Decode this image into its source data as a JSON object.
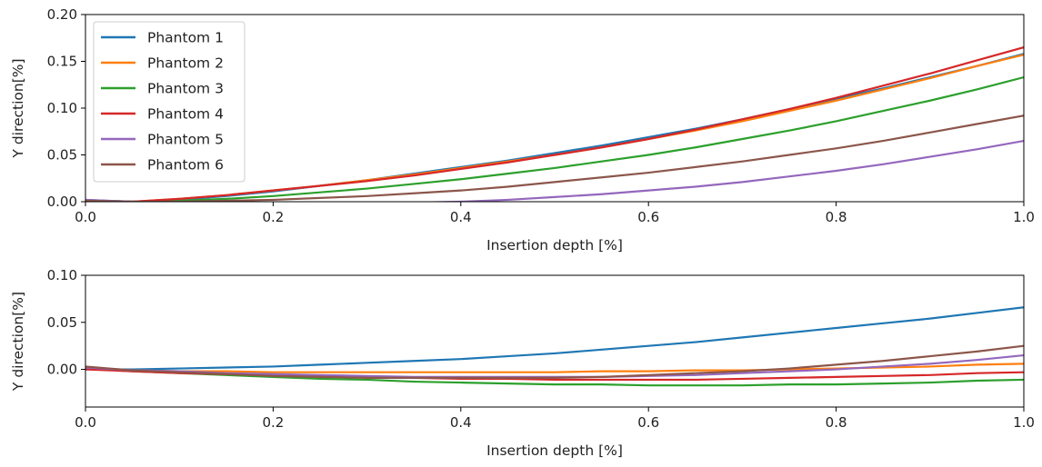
{
  "chart_data": [
    {
      "type": "line",
      "title": "",
      "xlabel": "Insertion depth [%]",
      "ylabel": "Y direction[%]",
      "xlim": [
        0,
        1
      ],
      "ylim": [
        0,
        0.2
      ],
      "xticks": [
        0.0,
        0.2,
        0.4,
        0.6,
        0.8,
        1.0
      ],
      "xtick_labels": [
        "0.0",
        "0.2",
        "0.4",
        "0.6",
        "0.8",
        "1.0"
      ],
      "yticks": [
        0.0,
        0.05,
        0.1,
        0.15,
        0.2
      ],
      "ytick_labels": [
        "0.00",
        "0.05",
        "0.10",
        "0.15",
        "0.20"
      ],
      "grid": false,
      "legend": "top-left",
      "x": [
        0.0,
        0.05,
        0.1,
        0.15,
        0.2,
        0.25,
        0.3,
        0.35,
        0.4,
        0.45,
        0.5,
        0.55,
        0.6,
        0.65,
        0.7,
        0.75,
        0.8,
        0.85,
        0.9,
        0.95,
        1.0
      ],
      "series": [
        {
          "name": "Phantom 1",
          "color": "#1f77b4",
          "values": [
            0.002,
            0.0,
            0.002,
            0.006,
            0.011,
            0.017,
            0.023,
            0.03,
            0.037,
            0.044,
            0.052,
            0.06,
            0.069,
            0.078,
            0.088,
            0.099,
            0.11,
            0.121,
            0.133,
            0.145,
            0.158
          ]
        },
        {
          "name": "Phantom 2",
          "color": "#ff7f0e",
          "values": [
            0.001,
            0.0,
            0.003,
            0.007,
            0.012,
            0.017,
            0.023,
            0.029,
            0.036,
            0.043,
            0.05,
            0.058,
            0.067,
            0.076,
            0.086,
            0.097,
            0.108,
            0.12,
            0.132,
            0.145,
            0.157
          ]
        },
        {
          "name": "Phantom 3",
          "color": "#2ca02c",
          "values": [
            0.001,
            0.0,
            0.001,
            0.003,
            0.006,
            0.01,
            0.014,
            0.019,
            0.024,
            0.03,
            0.036,
            0.043,
            0.05,
            0.058,
            0.067,
            0.076,
            0.086,
            0.097,
            0.108,
            0.12,
            0.133
          ]
        },
        {
          "name": "Phantom 4",
          "color": "#d62728",
          "values": [
            0.0,
            0.0,
            0.003,
            0.007,
            0.012,
            0.017,
            0.022,
            0.028,
            0.035,
            0.042,
            0.05,
            0.058,
            0.067,
            0.077,
            0.088,
            0.099,
            0.111,
            0.124,
            0.137,
            0.151,
            0.165
          ]
        },
        {
          "name": "Phantom 5",
          "color": "#9467bd",
          "values": [
            0.002,
            0.0,
            -0.001,
            -0.002,
            -0.003,
            -0.003,
            -0.002,
            -0.001,
            0.0,
            0.002,
            0.005,
            0.008,
            0.012,
            0.016,
            0.021,
            0.027,
            0.033,
            0.04,
            0.048,
            0.056,
            0.065
          ]
        },
        {
          "name": "Phantom 6",
          "color": "#8c564b",
          "values": [
            0.001,
            0.0,
            0.0,
            0.001,
            0.002,
            0.004,
            0.006,
            0.009,
            0.012,
            0.016,
            0.021,
            0.026,
            0.031,
            0.037,
            0.043,
            0.05,
            0.057,
            0.065,
            0.074,
            0.083,
            0.092
          ]
        }
      ]
    },
    {
      "type": "line",
      "title": "",
      "xlabel": "Insertion depth [%]",
      "ylabel": "Y direction[%]",
      "xlim": [
        0,
        1
      ],
      "ylim": [
        -0.04,
        0.1
      ],
      "xticks": [
        0.0,
        0.2,
        0.4,
        0.6,
        0.8,
        1.0
      ],
      "xtick_labels": [
        "0.0",
        "0.2",
        "0.4",
        "0.6",
        "0.8",
        "1.0"
      ],
      "yticks": [
        0.0,
        0.05,
        0.1
      ],
      "ytick_labels": [
        "0.00",
        "0.05",
        "0.10"
      ],
      "grid": false,
      "legend": "none",
      "x": [
        0.0,
        0.05,
        0.1,
        0.15,
        0.2,
        0.25,
        0.3,
        0.35,
        0.4,
        0.45,
        0.5,
        0.55,
        0.6,
        0.65,
        0.7,
        0.75,
        0.8,
        0.85,
        0.9,
        0.95,
        1.0
      ],
      "series": [
        {
          "name": "Phantom 1",
          "color": "#1f77b4",
          "values": [
            0.0,
            0.0,
            0.001,
            0.002,
            0.003,
            0.005,
            0.007,
            0.009,
            0.011,
            0.014,
            0.017,
            0.021,
            0.025,
            0.029,
            0.034,
            0.039,
            0.044,
            0.049,
            0.054,
            0.06,
            0.066
          ]
        },
        {
          "name": "Phantom 2",
          "color": "#ff7f0e",
          "values": [
            0.001,
            -0.001,
            -0.002,
            -0.002,
            -0.003,
            -0.003,
            -0.003,
            -0.003,
            -0.003,
            -0.003,
            -0.003,
            -0.002,
            -0.002,
            -0.001,
            -0.001,
            0.0,
            0.001,
            0.002,
            0.003,
            0.005,
            0.006
          ]
        },
        {
          "name": "Phantom 3",
          "color": "#2ca02c",
          "values": [
            0.001,
            -0.002,
            -0.004,
            -0.006,
            -0.008,
            -0.01,
            -0.011,
            -0.013,
            -0.014,
            -0.015,
            -0.016,
            -0.016,
            -0.017,
            -0.017,
            -0.017,
            -0.016,
            -0.016,
            -0.015,
            -0.014,
            -0.012,
            -0.011
          ]
        },
        {
          "name": "Phantom 4",
          "color": "#d62728",
          "values": [
            0.0,
            -0.002,
            -0.004,
            -0.005,
            -0.006,
            -0.007,
            -0.008,
            -0.009,
            -0.01,
            -0.01,
            -0.011,
            -0.011,
            -0.011,
            -0.011,
            -0.01,
            -0.009,
            -0.008,
            -0.007,
            -0.006,
            -0.004,
            -0.003
          ]
        },
        {
          "name": "Phantom 5",
          "color": "#9467bd",
          "values": [
            0.002,
            -0.001,
            -0.002,
            -0.004,
            -0.005,
            -0.006,
            -0.007,
            -0.008,
            -0.008,
            -0.008,
            -0.008,
            -0.008,
            -0.007,
            -0.006,
            -0.004,
            -0.002,
            0.0,
            0.003,
            0.006,
            0.01,
            0.015
          ]
        },
        {
          "name": "Phantom 6",
          "color": "#8c564b",
          "values": [
            0.003,
            -0.001,
            -0.003,
            -0.005,
            -0.007,
            -0.008,
            -0.009,
            -0.009,
            -0.009,
            -0.009,
            -0.009,
            -0.008,
            -0.006,
            -0.004,
            -0.002,
            0.001,
            0.005,
            0.009,
            0.014,
            0.019,
            0.025
          ]
        }
      ]
    }
  ]
}
